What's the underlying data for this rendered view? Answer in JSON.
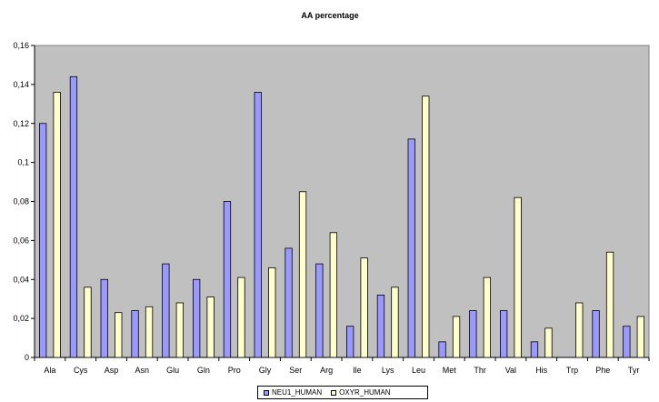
{
  "chart_data": {
    "type": "bar",
    "title": "AA percentage",
    "xlabel": "",
    "ylabel": "",
    "ylim": [
      0,
      0.16
    ],
    "yticks": [
      "0",
      "0,02",
      "0,04",
      "0,06",
      "0,08",
      "0,1",
      "0,12",
      "0,14",
      "0,16"
    ],
    "grid": false,
    "legend": "bottom",
    "categories": [
      "Ala",
      "Cys",
      "Asp",
      "Asn",
      "Glu",
      "Gln",
      "Pro",
      "Gly",
      "Ser",
      "Arg",
      "Ile",
      "Lys",
      "Leu",
      "Met",
      "Thr",
      "Val",
      "His",
      "Trp",
      "Phe",
      "Tyr"
    ],
    "series": [
      {
        "name": "NEU1_HUMAN",
        "color": "#9999ff",
        "values": [
          0.12,
          0.144,
          0.04,
          0.024,
          0.048,
          0.04,
          0.08,
          0.136,
          0.056,
          0.048,
          0.016,
          0.032,
          0.112,
          0.008,
          0.024,
          0.024,
          0.008,
          0,
          0.024,
          0.016
        ]
      },
      {
        "name": "OXYR_HUMAN",
        "color": "#ffffcc",
        "values": [
          0.136,
          0.036,
          0.023,
          0.026,
          0.028,
          0.031,
          0.041,
          0.046,
          0.085,
          0.064,
          0.051,
          0.036,
          0.134,
          0.021,
          0.041,
          0.082,
          0.015,
          0.028,
          0.054,
          0.021
        ]
      }
    ],
    "plot_background": "#c0c0c0"
  }
}
